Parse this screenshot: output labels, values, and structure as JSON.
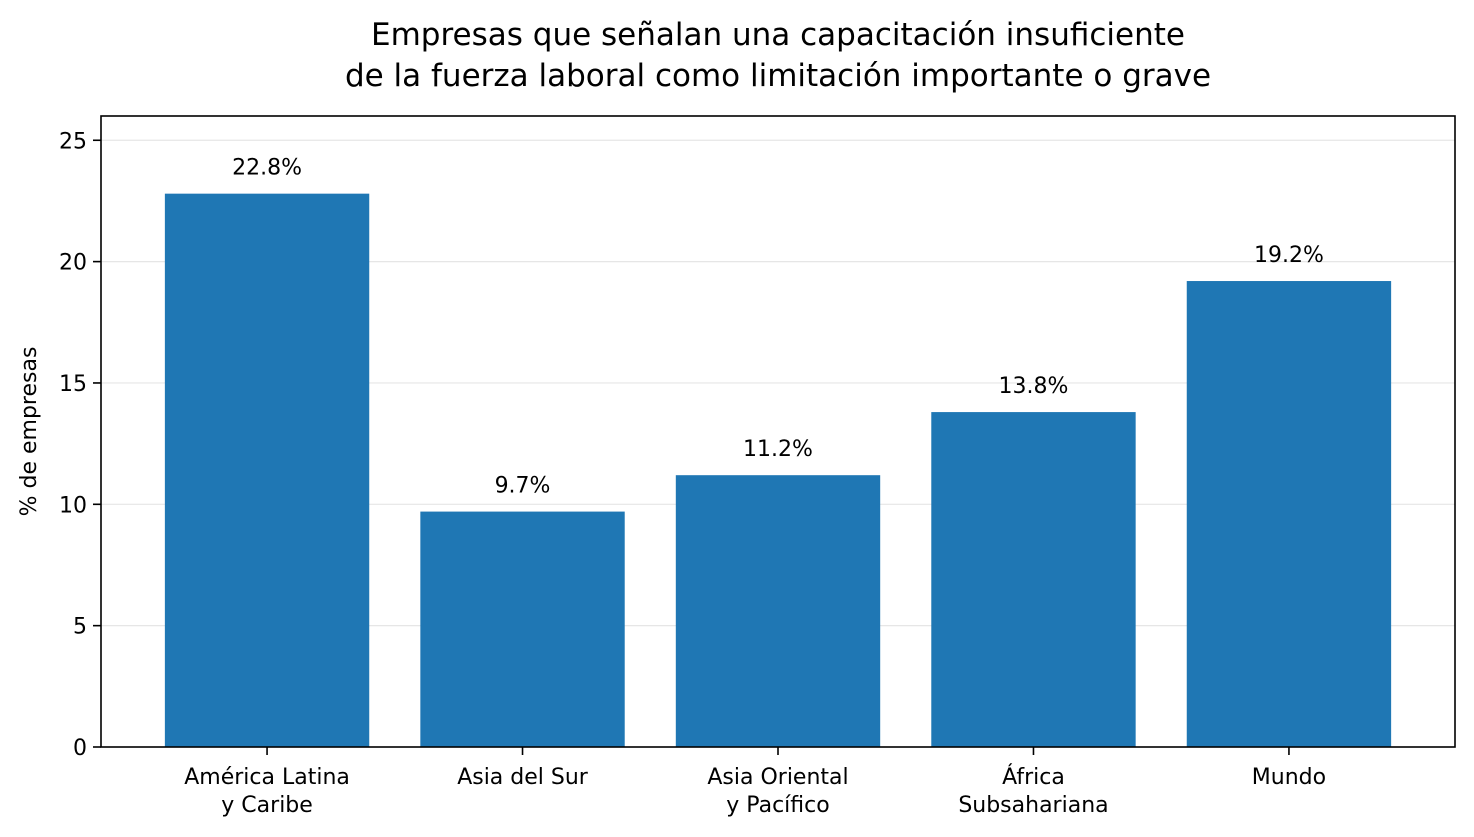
{
  "chart_data": {
    "type": "bar",
    "title": [
      "Empresas que señalan una capacitación insuficiente",
      "de la fuerza laboral como limitación importante o grave"
    ],
    "xlabel": "",
    "ylabel": "% de empresas",
    "ylim": [
      0,
      26
    ],
    "yticks": [
      0,
      5,
      10,
      15,
      20,
      25
    ],
    "grid": "horizontal",
    "categories": [
      [
        "América Latina",
        "y Caribe"
      ],
      [
        "Asia del Sur"
      ],
      [
        "Asia Oriental",
        "y Pacífico"
      ],
      [
        "África",
        "Subsahariana"
      ],
      [
        "Mundo"
      ]
    ],
    "values": [
      22.8,
      9.7,
      11.2,
      13.8,
      19.2
    ],
    "value_labels": [
      "22.8%",
      "9.7%",
      "11.2%",
      "13.8%",
      "19.2%"
    ],
    "bar_color": "#1f77b4"
  }
}
